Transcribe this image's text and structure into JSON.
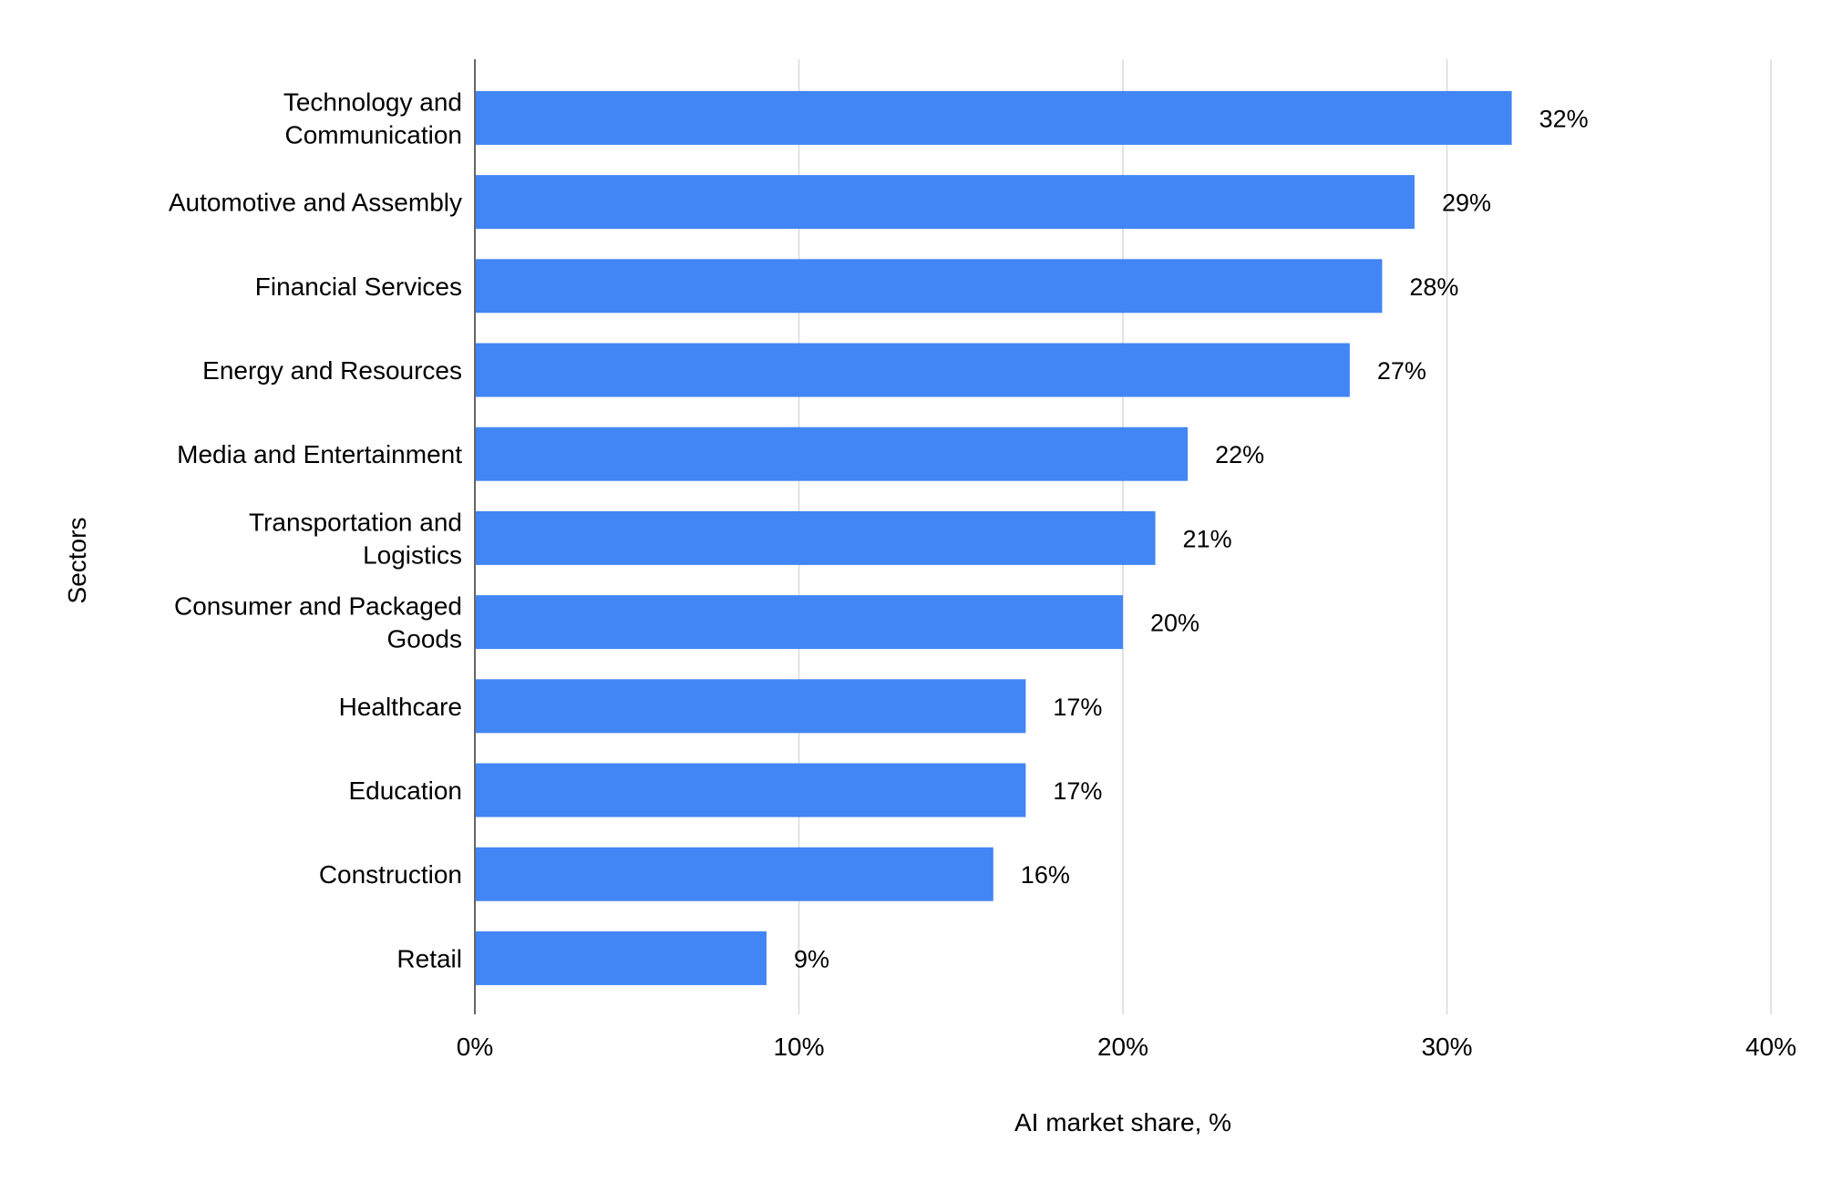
{
  "chart_data": {
    "type": "bar",
    "orientation": "horizontal",
    "title": "",
    "xlabel": "AI market share, %",
    "ylabel": "Sectors",
    "xlim": [
      0,
      40
    ],
    "xticks": [
      0,
      10,
      20,
      30,
      40
    ],
    "xtick_labels": [
      "0%",
      "10%",
      "20%",
      "30%",
      "40%"
    ],
    "grid": true,
    "bar_color": "#4285f4",
    "categories": [
      [
        "Technology and",
        "Communication"
      ],
      [
        "Automotive and Assembly"
      ],
      [
        "Financial Services"
      ],
      [
        "Energy and Resources"
      ],
      [
        "Media and Entertainment"
      ],
      [
        "Transportation and",
        "Logistics"
      ],
      [
        "Consumer and Packaged",
        "Goods"
      ],
      [
        "Healthcare"
      ],
      [
        "Education"
      ],
      [
        "Construction"
      ],
      [
        "Retail"
      ]
    ],
    "values": [
      32,
      29,
      28,
      27,
      22,
      21,
      20,
      17,
      17,
      16,
      9
    ],
    "data_labels": [
      "32%",
      "29%",
      "28%",
      "27%",
      "22%",
      "21%",
      "20%",
      "17%",
      "17%",
      "16%",
      "9%"
    ]
  }
}
